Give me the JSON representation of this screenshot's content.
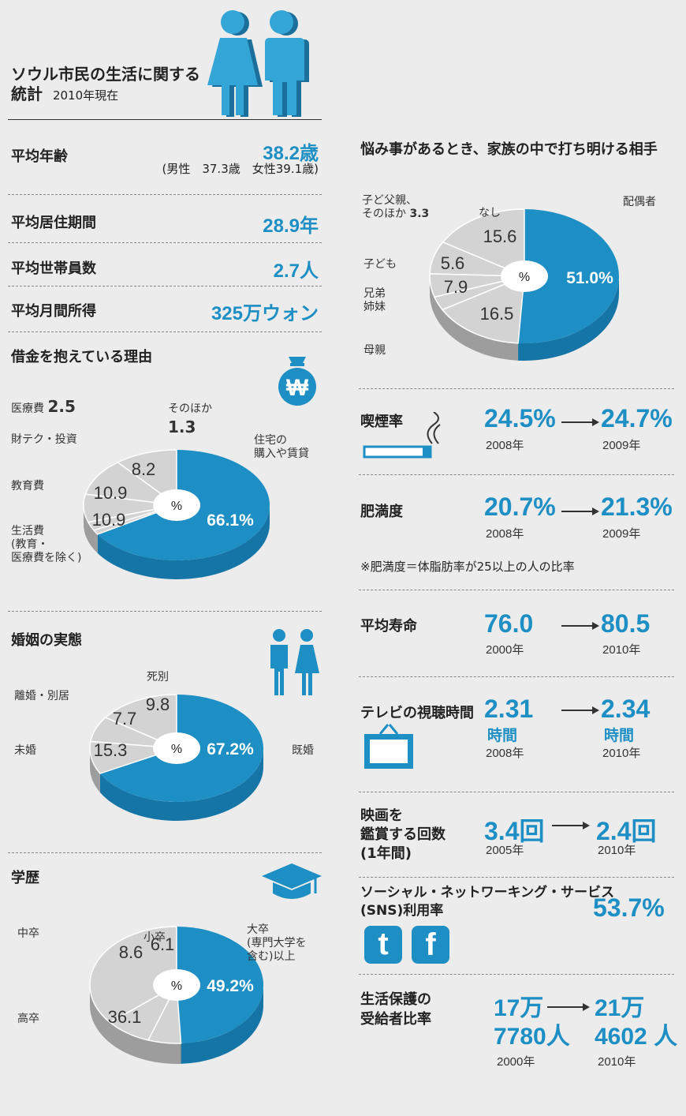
{
  "title": {
    "line1": "ソウル市民の生活に関する",
    "line2": "統計",
    "date": "2010年現在"
  },
  "stats": [
    {
      "label": "平均年齢",
      "value": "38.2歳",
      "sub": "(男性　37.3歳　女性39.1歳)"
    },
    {
      "label": "平均居住期間",
      "value": "28.9年"
    },
    {
      "label": "平均世帯員数",
      "value": "2.7人"
    },
    {
      "label": "平均月間所得",
      "value": "325万ウォン"
    }
  ],
  "right_items": {
    "smoking": {
      "label": "喫煙率",
      "from": "24.5%",
      "from_year": "2008年",
      "to": "24.7%",
      "to_year": "2009年"
    },
    "obesity": {
      "label": "肥満度",
      "from": "20.7%",
      "from_year": "2008年",
      "to": "21.3%",
      "to_year": "2009年",
      "note": "※肥満度＝体脂肪率が25以上の人の比率"
    },
    "life": {
      "label": "平均寿命",
      "from": "76.0",
      "from_year": "2000年",
      "to": "80.5",
      "to_year": "2010年"
    },
    "tv": {
      "label": "テレビの視聴時間",
      "from": "2.31",
      "from_unit": "時間",
      "from_year": "2008年",
      "to": "2.34",
      "to_unit": "時間",
      "to_year": "2010年"
    },
    "movie": {
      "label1": "映画を",
      "label2": "鑑賞する回数",
      "label3": "(1年間)",
      "from": "3.4回",
      "from_year": "2005年",
      "to": "2.4回",
      "to_year": "2010年"
    },
    "sns": {
      "label1": "ソーシャル・ネットワーキング・サービス",
      "label2": "(SNS)利用率",
      "value": "53.7%",
      "twitter_letter": "t",
      "facebook_letter": "f"
    },
    "welfare": {
      "label1": "生活保護の",
      "label2": "受給者比率",
      "from1": "17万",
      "from2": "7780人",
      "from_year": "2000年",
      "to1": "21万",
      "to2": "4602 人",
      "to_year": "2010年"
    }
  },
  "icons": {
    "won_symbol": "₩"
  },
  "colors": {
    "blue": "#1e8fc4",
    "blue_dark": "#1475a6",
    "gray": "#d3d3d3",
    "gray_dark": "#9d9d9d"
  },
  "chart_data": [
    {
      "type": "pie",
      "title": "悩み事があるとき、家族の中で打ち明ける相手",
      "center": "%",
      "categories": [
        "配偶者",
        "母親",
        "兄弟姉妹",
        "子ども",
        "子ど父親、そのほか",
        "なし"
      ],
      "values": [
        51.0,
        16.5,
        7.9,
        5.6,
        3.3,
        15.6
      ],
      "value_labels": [
        "51.0%",
        "16.5",
        "7.9",
        "5.6",
        "3.3",
        "15.6"
      ],
      "labels": {
        "spouse": "配偶者",
        "mother": "母親",
        "sib1": "兄弟",
        "sib2": "姉妹",
        "child": "子ども",
        "other1": "子ど父親、",
        "other2": "そのほか",
        "other_val": "3.3",
        "none": "なし"
      }
    },
    {
      "type": "pie",
      "title": "借金を抱えている理由",
      "center": "%",
      "categories": [
        "住宅の購入や賃貸",
        "生活費(教育・医療費を除く)",
        "教育費",
        "財テク・投資",
        "医療費",
        "そのほか"
      ],
      "values": [
        66.1,
        10.9,
        10.9,
        8.2,
        2.5,
        1.3
      ],
      "value_labels": [
        "66.1%",
        "10.9",
        "10.9",
        "8.2",
        "2.5",
        "1.3"
      ],
      "labels": {
        "housing1": "住宅の",
        "housing2": "購入や賃貸",
        "living1": "生活費",
        "living2": "(教育・",
        "living3": "医療費を除く)",
        "education": "教育費",
        "invest": "財テク・投資",
        "medical": "医療費",
        "medical_val": "2.5",
        "other": "そのほか",
        "other_val": "1.3"
      }
    },
    {
      "type": "pie",
      "title": "婚姻の実態",
      "center": "%",
      "categories": [
        "既婚",
        "未婚",
        "離婚・別居",
        "死別"
      ],
      "values": [
        67.2,
        15.3,
        7.7,
        9.8
      ],
      "value_labels": [
        "67.2%",
        "15.3",
        "7.7",
        "9.8"
      ],
      "labels": {
        "married": "既婚",
        "single": "未婚",
        "divorced": "離婚・別居",
        "widowed": "死別"
      }
    },
    {
      "type": "pie",
      "title": "学歴",
      "center": "%",
      "categories": [
        "大卒(専門大学を含む)以上",
        "高卒",
        "中卒",
        "小卒"
      ],
      "values": [
        49.2,
        36.1,
        8.6,
        6.1
      ],
      "value_labels": [
        "49.2%",
        "36.1",
        "8.6",
        "6.1"
      ],
      "labels": {
        "univ1": "大卒",
        "univ2": "(専門大学を",
        "univ3": "含む)以上",
        "high": "高卒",
        "middle": "中卒",
        "primary": "小卒"
      }
    }
  ]
}
